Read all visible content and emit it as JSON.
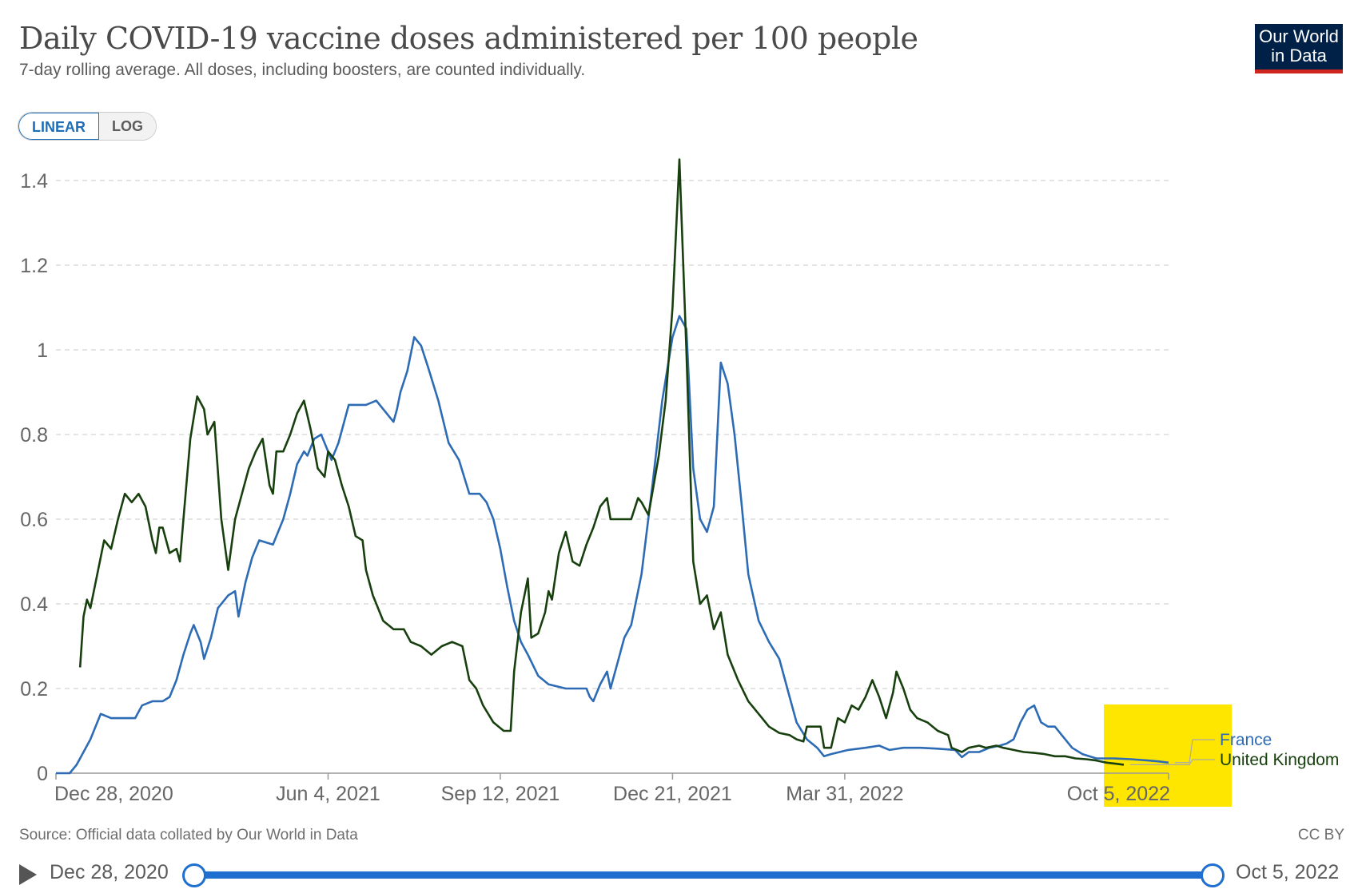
{
  "header": {
    "title": "Daily COVID-19 vaccine doses administered per 100 people",
    "subtitle": "7-day rolling average. All doses, including boosters, are counted individually.",
    "logo_line1": "Our World",
    "logo_line2": "in Data"
  },
  "controls": {
    "linear_label": "LINEAR",
    "log_label": "LOG"
  },
  "footer": {
    "source": "Source: Official data collated by Our World in Data",
    "license": "CC BY"
  },
  "timeline": {
    "start_label": "Dec 28, 2020",
    "end_label": "Oct 5, 2022"
  },
  "colors": {
    "france": "#2d6cb5",
    "uk": "#18400f",
    "grid": "#dcdcdc",
    "highlight": "#ffe600"
  },
  "chart_data": {
    "type": "line",
    "title": "Daily COVID-19 vaccine doses administered per 100 people",
    "ylim": [
      0,
      1.4
    ],
    "y_ticks": [
      0,
      0.2,
      0.4,
      0.6,
      0.8,
      1,
      1.2,
      1.4
    ],
    "y_tick_labels": [
      "0",
      "0.2",
      "0.4",
      "0.6",
      "0.8",
      "1",
      "1.2",
      "1.4"
    ],
    "x_ticks": [
      0,
      158,
      258,
      358,
      458,
      646
    ],
    "x_tick_labels": [
      "Dec 28, 2020",
      "Jun 4, 2021",
      "Sep 12, 2021",
      "Dec 21, 2021",
      "Mar 31, 2022",
      "Oct 5, 2022"
    ],
    "x_unit": "days after Dec 28, 2020",
    "xlim": [
      0,
      646
    ],
    "grid": "horizontal dashed",
    "highlight_label": "Oct 5, 2022",
    "series": [
      {
        "name": "France",
        "points": [
          [
            0,
            0
          ],
          [
            8,
            0
          ],
          [
            12,
            0.02
          ],
          [
            16,
            0.05
          ],
          [
            20,
            0.08
          ],
          [
            26,
            0.14
          ],
          [
            32,
            0.13
          ],
          [
            40,
            0.13
          ],
          [
            46,
            0.13
          ],
          [
            50,
            0.16
          ],
          [
            56,
            0.17
          ],
          [
            62,
            0.17
          ],
          [
            66,
            0.18
          ],
          [
            70,
            0.22
          ],
          [
            74,
            0.28
          ],
          [
            78,
            0.33
          ],
          [
            80,
            0.35
          ],
          [
            84,
            0.31
          ],
          [
            86,
            0.27
          ],
          [
            90,
            0.32
          ],
          [
            94,
            0.39
          ],
          [
            100,
            0.42
          ],
          [
            104,
            0.43
          ],
          [
            106,
            0.37
          ],
          [
            110,
            0.45
          ],
          [
            114,
            0.51
          ],
          [
            118,
            0.55
          ],
          [
            126,
            0.54
          ],
          [
            132,
            0.6
          ],
          [
            136,
            0.66
          ],
          [
            140,
            0.73
          ],
          [
            144,
            0.76
          ],
          [
            146,
            0.75
          ],
          [
            150,
            0.79
          ],
          [
            154,
            0.8
          ],
          [
            158,
            0.76
          ],
          [
            160,
            0.74
          ],
          [
            164,
            0.78
          ],
          [
            170,
            0.87
          ],
          [
            180,
            0.87
          ],
          [
            186,
            0.88
          ],
          [
            190,
            0.86
          ],
          [
            194,
            0.84
          ],
          [
            196,
            0.83
          ],
          [
            198,
            0.86
          ],
          [
            200,
            0.9
          ],
          [
            204,
            0.95
          ],
          [
            208,
            1.03
          ],
          [
            212,
            1.01
          ],
          [
            216,
            0.96
          ],
          [
            222,
            0.88
          ],
          [
            228,
            0.78
          ],
          [
            234,
            0.74
          ],
          [
            240,
            0.66
          ],
          [
            246,
            0.66
          ],
          [
            250,
            0.64
          ],
          [
            254,
            0.6
          ],
          [
            258,
            0.53
          ],
          [
            262,
            0.44
          ],
          [
            266,
            0.36
          ],
          [
            270,
            0.31
          ],
          [
            274,
            0.28
          ],
          [
            280,
            0.23
          ],
          [
            286,
            0.21
          ],
          [
            296,
            0.2
          ],
          [
            304,
            0.2
          ],
          [
            308,
            0.2
          ],
          [
            310,
            0.18
          ],
          [
            312,
            0.17
          ],
          [
            316,
            0.21
          ],
          [
            320,
            0.24
          ],
          [
            322,
            0.2
          ],
          [
            326,
            0.26
          ],
          [
            330,
            0.32
          ],
          [
            334,
            0.35
          ],
          [
            340,
            0.47
          ],
          [
            346,
            0.67
          ],
          [
            352,
            0.88
          ],
          [
            358,
            1.03
          ],
          [
            362,
            1.08
          ],
          [
            366,
            1.05
          ],
          [
            370,
            0.72
          ],
          [
            374,
            0.6
          ],
          [
            378,
            0.57
          ],
          [
            382,
            0.63
          ],
          [
            386,
            0.97
          ],
          [
            390,
            0.92
          ],
          [
            394,
            0.8
          ],
          [
            398,
            0.64
          ],
          [
            402,
            0.47
          ],
          [
            408,
            0.36
          ],
          [
            414,
            0.31
          ],
          [
            420,
            0.27
          ],
          [
            426,
            0.18
          ],
          [
            430,
            0.12
          ],
          [
            436,
            0.08
          ],
          [
            442,
            0.06
          ],
          [
            446,
            0.04
          ],
          [
            450,
            0.045
          ],
          [
            460,
            0.055
          ],
          [
            470,
            0.06
          ],
          [
            478,
            0.065
          ],
          [
            484,
            0.055
          ],
          [
            492,
            0.06
          ],
          [
            502,
            0.06
          ],
          [
            512,
            0.058
          ],
          [
            522,
            0.055
          ],
          [
            526,
            0.038
          ],
          [
            530,
            0.05
          ],
          [
            536,
            0.05
          ],
          [
            542,
            0.06
          ],
          [
            548,
            0.065
          ],
          [
            552,
            0.07
          ],
          [
            556,
            0.08
          ],
          [
            560,
            0.12
          ],
          [
            564,
            0.15
          ],
          [
            568,
            0.16
          ],
          [
            572,
            0.12
          ],
          [
            576,
            0.11
          ],
          [
            580,
            0.11
          ],
          [
            584,
            0.09
          ],
          [
            590,
            0.06
          ],
          [
            596,
            0.045
          ],
          [
            604,
            0.035
          ],
          [
            614,
            0.035
          ],
          [
            624,
            0.033
          ],
          [
            634,
            0.03
          ],
          [
            640,
            0.028
          ],
          [
            646,
            0.025
          ]
        ]
      },
      {
        "name": "United Kingdom",
        "points": [
          [
            14,
            0.25
          ],
          [
            16,
            0.37
          ],
          [
            18,
            0.41
          ],
          [
            20,
            0.39
          ],
          [
            24,
            0.47
          ],
          [
            28,
            0.55
          ],
          [
            32,
            0.53
          ],
          [
            36,
            0.6
          ],
          [
            40,
            0.66
          ],
          [
            44,
            0.64
          ],
          [
            48,
            0.66
          ],
          [
            52,
            0.63
          ],
          [
            56,
            0.55
          ],
          [
            58,
            0.52
          ],
          [
            60,
            0.58
          ],
          [
            62,
            0.58
          ],
          [
            66,
            0.52
          ],
          [
            70,
            0.53
          ],
          [
            72,
            0.5
          ],
          [
            74,
            0.6
          ],
          [
            78,
            0.79
          ],
          [
            82,
            0.89
          ],
          [
            86,
            0.86
          ],
          [
            88,
            0.8
          ],
          [
            92,
            0.83
          ],
          [
            96,
            0.6
          ],
          [
            100,
            0.48
          ],
          [
            104,
            0.6
          ],
          [
            108,
            0.66
          ],
          [
            112,
            0.72
          ],
          [
            116,
            0.76
          ],
          [
            120,
            0.79
          ],
          [
            124,
            0.68
          ],
          [
            126,
            0.66
          ],
          [
            128,
            0.76
          ],
          [
            132,
            0.76
          ],
          [
            136,
            0.8
          ],
          [
            140,
            0.85
          ],
          [
            144,
            0.88
          ],
          [
            148,
            0.81
          ],
          [
            152,
            0.72
          ],
          [
            156,
            0.7
          ],
          [
            158,
            0.76
          ],
          [
            162,
            0.74
          ],
          [
            166,
            0.68
          ],
          [
            170,
            0.63
          ],
          [
            174,
            0.56
          ],
          [
            178,
            0.55
          ],
          [
            180,
            0.48
          ],
          [
            184,
            0.42
          ],
          [
            190,
            0.36
          ],
          [
            196,
            0.34
          ],
          [
            202,
            0.34
          ],
          [
            206,
            0.31
          ],
          [
            212,
            0.3
          ],
          [
            218,
            0.28
          ],
          [
            224,
            0.3
          ],
          [
            230,
            0.31
          ],
          [
            236,
            0.3
          ],
          [
            240,
            0.22
          ],
          [
            244,
            0.2
          ],
          [
            248,
            0.16
          ],
          [
            254,
            0.12
          ],
          [
            260,
            0.1
          ],
          [
            264,
            0.1
          ],
          [
            266,
            0.24
          ],
          [
            270,
            0.38
          ],
          [
            274,
            0.46
          ],
          [
            276,
            0.32
          ],
          [
            280,
            0.33
          ],
          [
            284,
            0.38
          ],
          [
            286,
            0.43
          ],
          [
            288,
            0.41
          ],
          [
            292,
            0.52
          ],
          [
            296,
            0.57
          ],
          [
            300,
            0.5
          ],
          [
            304,
            0.49
          ],
          [
            308,
            0.54
          ],
          [
            312,
            0.58
          ],
          [
            316,
            0.63
          ],
          [
            320,
            0.65
          ],
          [
            322,
            0.6
          ],
          [
            328,
            0.6
          ],
          [
            334,
            0.6
          ],
          [
            338,
            0.65
          ],
          [
            340,
            0.64
          ],
          [
            344,
            0.61
          ],
          [
            350,
            0.75
          ],
          [
            354,
            0.88
          ],
          [
            358,
            1.1
          ],
          [
            362,
            1.45
          ],
          [
            366,
            1.0
          ],
          [
            370,
            0.5
          ],
          [
            374,
            0.4
          ],
          [
            378,
            0.42
          ],
          [
            382,
            0.34
          ],
          [
            386,
            0.38
          ],
          [
            390,
            0.28
          ],
          [
            396,
            0.22
          ],
          [
            402,
            0.17
          ],
          [
            408,
            0.14
          ],
          [
            414,
            0.11
          ],
          [
            420,
            0.095
          ],
          [
            426,
            0.09
          ],
          [
            430,
            0.08
          ],
          [
            434,
            0.075
          ],
          [
            436,
            0.11
          ],
          [
            440,
            0.11
          ],
          [
            444,
            0.11
          ],
          [
            446,
            0.06
          ],
          [
            450,
            0.06
          ],
          [
            454,
            0.13
          ],
          [
            458,
            0.12
          ],
          [
            462,
            0.16
          ],
          [
            466,
            0.15
          ],
          [
            470,
            0.18
          ],
          [
            474,
            0.22
          ],
          [
            478,
            0.18
          ],
          [
            482,
            0.13
          ],
          [
            486,
            0.19
          ],
          [
            488,
            0.24
          ],
          [
            492,
            0.2
          ],
          [
            496,
            0.15
          ],
          [
            500,
            0.13
          ],
          [
            506,
            0.12
          ],
          [
            512,
            0.1
          ],
          [
            518,
            0.09
          ],
          [
            520,
            0.06
          ],
          [
            526,
            0.05
          ],
          [
            530,
            0.06
          ],
          [
            536,
            0.065
          ],
          [
            540,
            0.06
          ],
          [
            546,
            0.065
          ],
          [
            550,
            0.06
          ],
          [
            556,
            0.055
          ],
          [
            562,
            0.05
          ],
          [
            568,
            0.048
          ],
          [
            574,
            0.045
          ],
          [
            580,
            0.04
          ],
          [
            586,
            0.04
          ],
          [
            592,
            0.035
          ],
          [
            598,
            0.033
          ],
          [
            604,
            0.03
          ],
          [
            610,
            0.025
          ],
          [
            616,
            0.022
          ],
          [
            620,
            0.02
          ]
        ]
      }
    ]
  }
}
